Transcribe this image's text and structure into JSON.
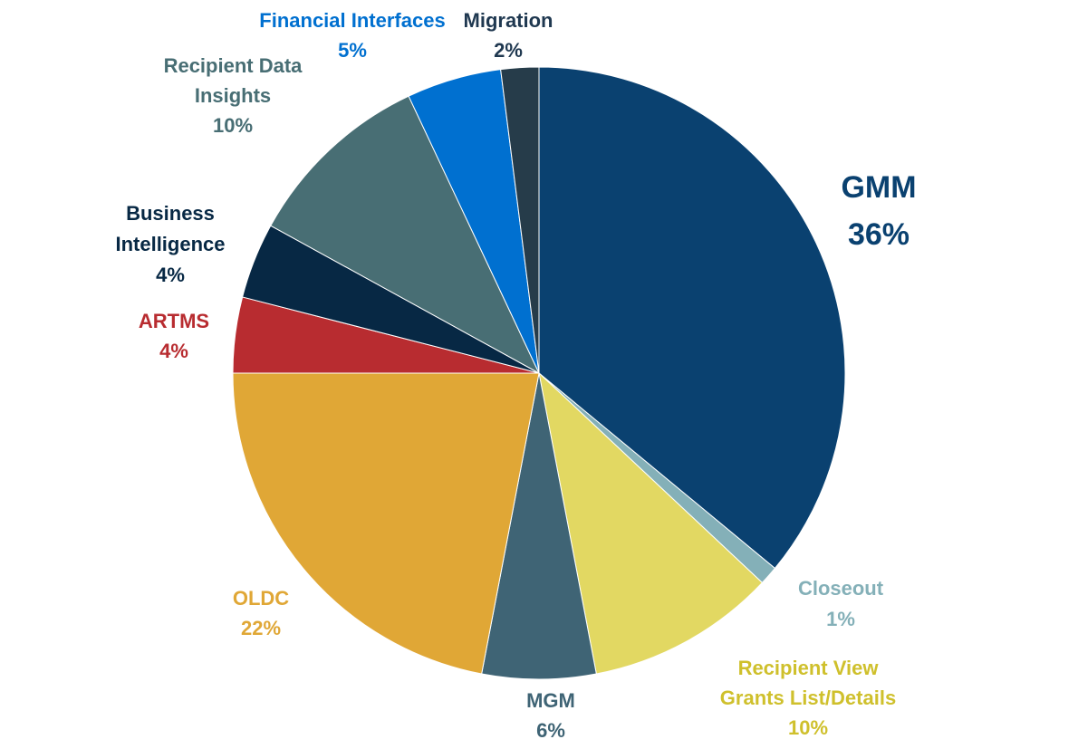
{
  "chart_data": {
    "type": "pie",
    "title": "",
    "start_angle": "12 o'clock, clockwise",
    "slices": [
      {
        "name_lines": [
          "GMM"
        ],
        "value": 36,
        "label": "36%",
        "color": "#0a4170",
        "label_color": "#0a4170"
      },
      {
        "name_lines": [
          "Closeout"
        ],
        "value": 1,
        "label": "1%",
        "color": "#84b0b8",
        "label_color": "#84b0b8"
      },
      {
        "name_lines": [
          "Recipient View",
          "Grants List/Details"
        ],
        "value": 10,
        "label": "10%",
        "color": "#e2d862",
        "label_color": "#cfc02c"
      },
      {
        "name_lines": [
          "MGM"
        ],
        "value": 6,
        "label": "6%",
        "color": "#3f6475",
        "label_color": "#3f6475"
      },
      {
        "name_lines": [
          "OLDC"
        ],
        "value": 22,
        "label": "22%",
        "color": "#e0a736",
        "label_color": "#e0a736"
      },
      {
        "name_lines": [
          "ARTMS"
        ],
        "value": 4,
        "label": "4%",
        "color": "#b82c30",
        "label_color": "#b82c30"
      },
      {
        "name_lines": [
          "Business",
          "Intelligence"
        ],
        "value": 4,
        "label": "4%",
        "color": "#072844",
        "label_color": "#072844"
      },
      {
        "name_lines": [
          "Recipient Data",
          "Insights"
        ],
        "value": 10,
        "label": "10%",
        "color": "#486e74",
        "label_color": "#486e74"
      },
      {
        "name_lines": [
          "Financial Interfaces"
        ],
        "value": 5,
        "label": "5%",
        "color": "#0070d0",
        "label_color": "#0070d0"
      },
      {
        "name_lines": [
          "Migration"
        ],
        "value": 2,
        "label": "2%",
        "color": "#263c4a",
        "label_color": "#1f3850"
      }
    ]
  }
}
